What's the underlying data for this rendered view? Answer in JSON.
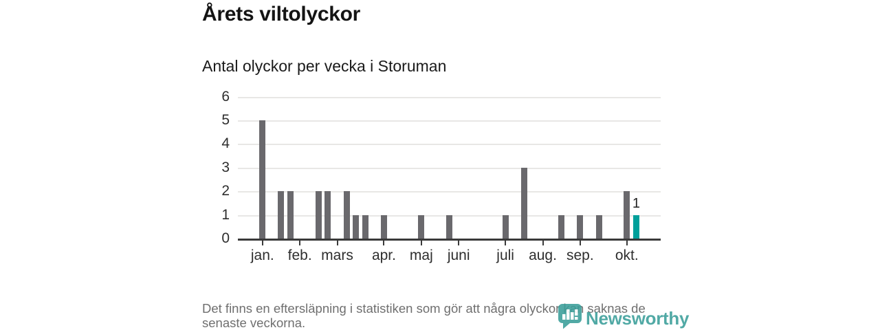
{
  "header": {
    "title": "Årets viltolyckor",
    "subtitle": "Antal olyckor per vecka i Storuman"
  },
  "footer": {
    "note": "Det finns en eftersläpning i statistiken som gör att några olyckor kan saknas de senaste veckorna.",
    "brand": "Newsworthy",
    "brand_icon": "newsworthy-pin-barchart-icon"
  },
  "colors": {
    "bar_gray": "#6a696d",
    "highlight_teal": "#00a09b",
    "brand_teal": "#3a9e99",
    "grid": "#e8e7e5",
    "axis": "#3a3a3a",
    "text_dark": "#141414",
    "text_gray": "#6f6f6f"
  },
  "chart_data": {
    "type": "bar",
    "title": "Årets viltolyckor",
    "subtitle": "Antal olyckor per vecka i Storuman",
    "x_unit": "vecka (week of year)",
    "ylabel": "",
    "xlabel": "",
    "ylim": [
      0,
      6
    ],
    "yticks": [
      0,
      1,
      2,
      3,
      4,
      5,
      6
    ],
    "grid": "horizontal",
    "legend": "none",
    "colors": {
      "bar": "#6a696d",
      "highlight": "#00a09b"
    },
    "series": [
      {
        "name": "Antal olyckor per vecka",
        "points": [
          {
            "week": 1,
            "value": 5
          },
          {
            "week": 3,
            "value": 2
          },
          {
            "week": 4,
            "value": 2
          },
          {
            "week": 7,
            "value": 2
          },
          {
            "week": 8,
            "value": 2
          },
          {
            "week": 10,
            "value": 2
          },
          {
            "week": 11,
            "value": 1
          },
          {
            "week": 12,
            "value": 1
          },
          {
            "week": 14,
            "value": 1
          },
          {
            "week": 18,
            "value": 1
          },
          {
            "week": 21,
            "value": 1
          },
          {
            "week": 27,
            "value": 1
          },
          {
            "week": 29,
            "value": 3
          },
          {
            "week": 33,
            "value": 1
          },
          {
            "week": 35,
            "value": 1
          },
          {
            "week": 37,
            "value": 1
          },
          {
            "week": 40,
            "value": 2
          },
          {
            "week": 41,
            "value": 1,
            "highlight": true,
            "label": "1"
          }
        ]
      }
    ],
    "month_ticks": [
      {
        "label": "jan.",
        "week": 1
      },
      {
        "label": "feb.",
        "week": 5
      },
      {
        "label": "mars",
        "week": 9
      },
      {
        "label": "apr.",
        "week": 14
      },
      {
        "label": "maj",
        "week": 18
      },
      {
        "label": "juni",
        "week": 22
      },
      {
        "label": "juli",
        "week": 27
      },
      {
        "label": "aug.",
        "week": 31
      },
      {
        "label": "sep.",
        "week": 35
      },
      {
        "label": "okt.",
        "week": 40
      }
    ]
  }
}
